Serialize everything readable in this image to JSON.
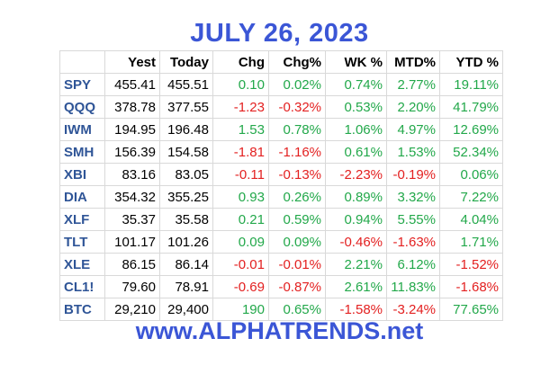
{
  "title": "JULY 26, 2023",
  "footer": "www.ALPHATRENDS.net",
  "colors": {
    "title": "#3b56d6",
    "symbol": "#2f5597",
    "positive": "#22a84a",
    "negative": "#e32020",
    "neutral": "#000000"
  },
  "table": {
    "headers": [
      "",
      "Yest",
      "Today",
      "Chg",
      "Chg%",
      "WK %",
      "MTD%",
      "YTD %"
    ],
    "rows": [
      {
        "symbol": "SPY",
        "yest": "455.41",
        "today": "455.51",
        "chg": "0.10",
        "chg_pct": "0.02%",
        "wk": "0.74%",
        "mtd": "2.77%",
        "ytd": "19.11%"
      },
      {
        "symbol": "QQQ",
        "yest": "378.78",
        "today": "377.55",
        "chg": "-1.23",
        "chg_pct": "-0.32%",
        "wk": "0.53%",
        "mtd": "2.20%",
        "ytd": "41.79%"
      },
      {
        "symbol": "IWM",
        "yest": "194.95",
        "today": "196.48",
        "chg": "1.53",
        "chg_pct": "0.78%",
        "wk": "1.06%",
        "mtd": "4.97%",
        "ytd": "12.69%"
      },
      {
        "symbol": "SMH",
        "yest": "156.39",
        "today": "154.58",
        "chg": "-1.81",
        "chg_pct": "-1.16%",
        "wk": "0.61%",
        "mtd": "1.53%",
        "ytd": "52.34%"
      },
      {
        "symbol": "XBI",
        "yest": "83.16",
        "today": "83.05",
        "chg": "-0.11",
        "chg_pct": "-0.13%",
        "wk": "-2.23%",
        "mtd": "-0.19%",
        "ytd": "0.06%"
      },
      {
        "symbol": "DIA",
        "yest": "354.32",
        "today": "355.25",
        "chg": "0.93",
        "chg_pct": "0.26%",
        "wk": "0.89%",
        "mtd": "3.32%",
        "ytd": "7.22%"
      },
      {
        "symbol": "XLF",
        "yest": "35.37",
        "today": "35.58",
        "chg": "0.21",
        "chg_pct": "0.59%",
        "wk": "0.94%",
        "mtd": "5.55%",
        "ytd": "4.04%"
      },
      {
        "symbol": "TLT",
        "yest": "101.17",
        "today": "101.26",
        "chg": "0.09",
        "chg_pct": "0.09%",
        "wk": "-0.46%",
        "mtd": "-1.63%",
        "ytd": "1.71%"
      },
      {
        "symbol": "XLE",
        "yest": "86.15",
        "today": "86.14",
        "chg": "-0.01",
        "chg_pct": "-0.01%",
        "wk": "2.21%",
        "mtd": "6.12%",
        "ytd": "-1.52%"
      },
      {
        "symbol": "CL1!",
        "yest": "79.60",
        "today": "78.91",
        "chg": "-0.69",
        "chg_pct": "-0.87%",
        "wk": "2.61%",
        "mtd": "11.83%",
        "ytd": "-1.68%"
      },
      {
        "symbol": "BTC",
        "yest": "29,210",
        "today": "29,400",
        "chg": "190",
        "chg_pct": "0.65%",
        "wk": "-1.58%",
        "mtd": "-3.24%",
        "ytd": "77.65%"
      }
    ]
  }
}
